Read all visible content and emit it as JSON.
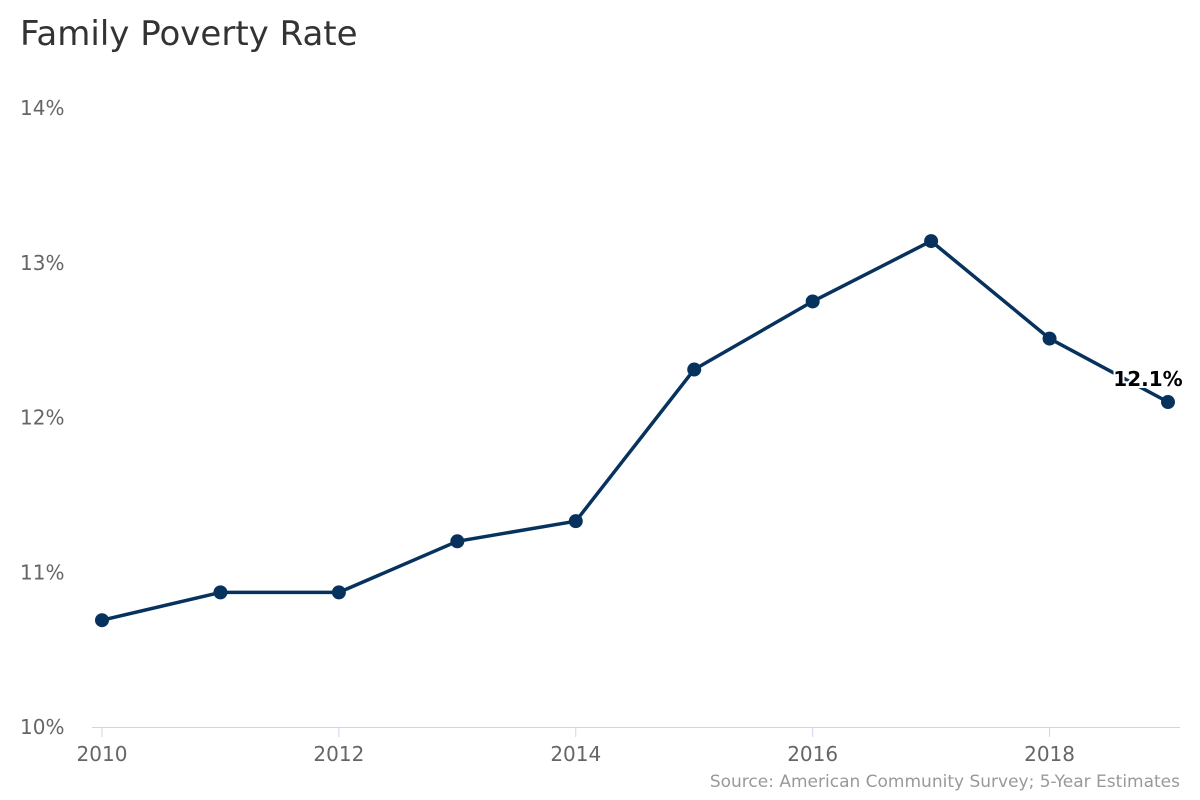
{
  "chart_data": {
    "type": "line",
    "title": "Family Poverty Rate",
    "xlabel": "",
    "ylabel": "",
    "x": [
      2010,
      2011,
      2012,
      2013,
      2014,
      2015,
      2016,
      2017,
      2018,
      2019
    ],
    "series": [
      {
        "values": [
          10.69,
          10.87,
          10.87,
          11.2,
          11.33,
          12.31,
          12.75,
          13.14,
          12.51,
          12.1
        ]
      }
    ],
    "xlim": [
      2010,
      2019
    ],
    "ylim": [
      10,
      14
    ],
    "x_ticks": [
      "2010",
      "2012",
      "2014",
      "2016",
      "2018"
    ],
    "y_ticks": [
      "10%",
      "11%",
      "12%",
      "13%",
      "14%"
    ],
    "data_labels": [
      {
        "x": 2019,
        "text": "12.1%"
      }
    ],
    "line_color": "#07325e",
    "grid": false,
    "legend": "none"
  },
  "credits": "Source: American Community Survey; 5-Year Estimates"
}
